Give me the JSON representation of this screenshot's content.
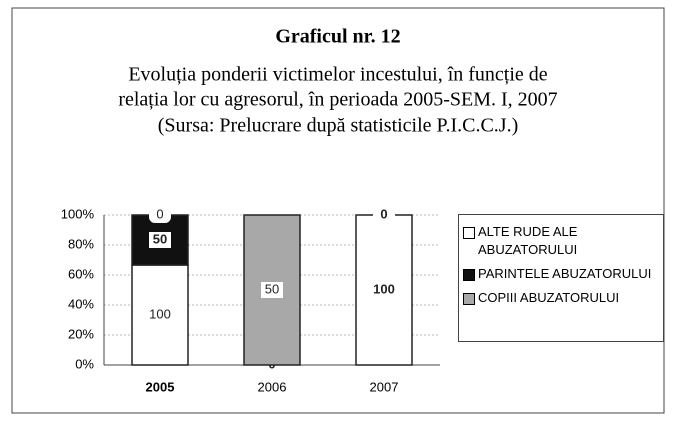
{
  "chart_data": {
    "type": "stacked_bar",
    "stacking": "percent",
    "title": "Graficul nr. 12",
    "subtitle": [
      "Evoluția ponderii victimelor incestului, în funcție de",
      "relația lor cu agresorul, în perioada 2005-SEM. I, 2007",
      "(Sursa: Prelucrare după statisticile P.I.C.C.J.)"
    ],
    "categories": [
      "2005",
      "2006",
      "2007"
    ],
    "series": [
      {
        "name": "ALTE RUDE ALE ABUZATORULUI",
        "color": "#ffffff",
        "values": [
          100,
          0,
          100
        ]
      },
      {
        "name": "PARINTELE ABUZATORULUI",
        "color": "#111111",
        "values": [
          50,
          0,
          0
        ]
      },
      {
        "name": "COPIII ABUZATORULUI",
        "color": "#a8a8a8",
        "values": [
          0,
          50,
          0
        ]
      }
    ],
    "ylim": [
      0,
      100
    ],
    "yticks": [
      {
        "value": 0,
        "label": "0%"
      },
      {
        "value": 20,
        "label": "20%"
      },
      {
        "value": 40,
        "label": "40%"
      },
      {
        "value": 60,
        "label": "60%"
      },
      {
        "value": 80,
        "label": "80%"
      },
      {
        "value": 100,
        "label": "100%"
      }
    ],
    "grid": true,
    "legend": "right"
  }
}
